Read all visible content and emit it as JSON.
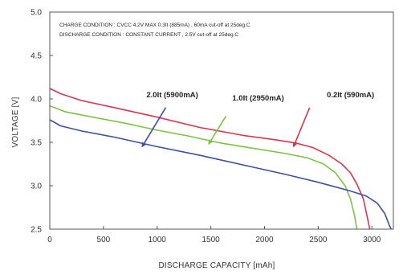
{
  "chart_data": {
    "type": "line",
    "xlabel": "DISCHARGE CAPACITY  [mAh]",
    "ylabel": "VOLTAGE  [V]",
    "xlim": [
      0,
      3200
    ],
    "ylim": [
      2.5,
      5.0
    ],
    "x_ticks": [
      0,
      500,
      1000,
      1500,
      2000,
      2500,
      3000
    ],
    "y_ticks": [
      2.5,
      3.0,
      3.5,
      4.0,
      4.5,
      5.0
    ],
    "x_tick_labels": [
      "0",
      "500",
      "1000",
      "1500",
      "2000",
      "2500",
      "3000"
    ],
    "y_tick_labels": [
      "2.5",
      "3.0",
      "3.5",
      "4.0",
      "4.5",
      "5.0"
    ],
    "grid": false,
    "annotations": [
      "CHARGE CONDITION : CVCC 4.2V MAX 0.3It (885mA) , 60mA cut-off at  25deg.C",
      "DISCHARGE CONDITION : CONSTANT CURRENT , 2.5V cut-off at  25deg.C"
    ],
    "series": [
      {
        "name": "0.2It (590mA)",
        "color": "#d8364d",
        "label_anchor": [
          2580,
          4.02
        ],
        "arrow_from": [
          2420,
          3.9
        ],
        "arrow_to": [
          2270,
          3.45
        ],
        "points": [
          [
            0,
            4.12
          ],
          [
            100,
            4.06
          ],
          [
            300,
            3.98
          ],
          [
            600,
            3.9
          ],
          [
            1000,
            3.79
          ],
          [
            1400,
            3.67
          ],
          [
            1800,
            3.58
          ],
          [
            2100,
            3.53
          ],
          [
            2300,
            3.49
          ],
          [
            2450,
            3.44
          ],
          [
            2600,
            3.35
          ],
          [
            2720,
            3.25
          ],
          [
            2800,
            3.15
          ],
          [
            2860,
            3.02
          ],
          [
            2920,
            2.85
          ],
          [
            2960,
            2.62
          ],
          [
            2980,
            2.5
          ]
        ]
      },
      {
        "name": "1.0It (2950mA)",
        "color": "#7cc444",
        "label_anchor": [
          1700,
          3.98
        ],
        "arrow_from": [
          1640,
          3.8
        ],
        "arrow_to": [
          1480,
          3.48
        ],
        "points": [
          [
            0,
            3.92
          ],
          [
            150,
            3.85
          ],
          [
            400,
            3.79
          ],
          [
            700,
            3.72
          ],
          [
            1000,
            3.64
          ],
          [
            1300,
            3.57
          ],
          [
            1600,
            3.49
          ],
          [
            1900,
            3.43
          ],
          [
            2200,
            3.37
          ],
          [
            2400,
            3.32
          ],
          [
            2550,
            3.25
          ],
          [
            2660,
            3.15
          ],
          [
            2750,
            3.0
          ],
          [
            2800,
            2.85
          ],
          [
            2840,
            2.65
          ],
          [
            2860,
            2.5
          ]
        ]
      },
      {
        "name": "2.0It (5900mA)",
        "color": "#3a4fa6",
        "label_anchor": [
          900,
          4.02
        ],
        "arrow_from": [
          1080,
          3.9
        ],
        "arrow_to": [
          860,
          3.45
        ],
        "points": [
          [
            0,
            3.76
          ],
          [
            100,
            3.69
          ],
          [
            300,
            3.63
          ],
          [
            600,
            3.56
          ],
          [
            1000,
            3.45
          ],
          [
            1400,
            3.35
          ],
          [
            1800,
            3.24
          ],
          [
            2200,
            3.13
          ],
          [
            2500,
            3.04
          ],
          [
            2800,
            2.94
          ],
          [
            2950,
            2.88
          ],
          [
            3050,
            2.8
          ],
          [
            3120,
            2.68
          ],
          [
            3160,
            2.55
          ],
          [
            3180,
            2.5
          ]
        ]
      }
    ]
  }
}
